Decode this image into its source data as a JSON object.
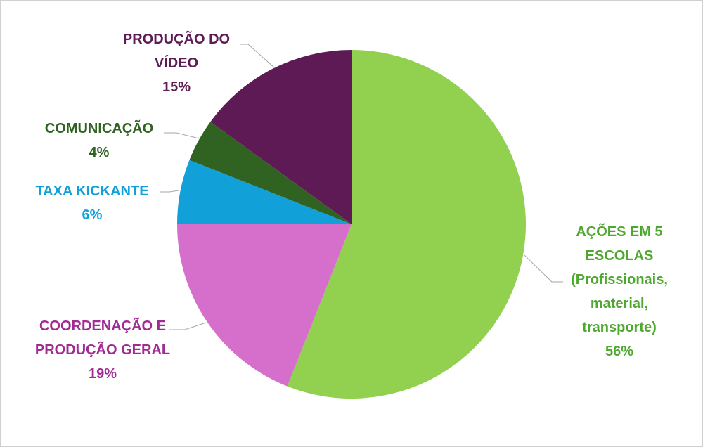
{
  "chart_data": {
    "type": "pie",
    "categories": [
      "AÇÕES EM 5 ESCOLAS (Profissionais, material, transporte)",
      "COORDENAÇÃO E PRODUÇÃO GERAL",
      "TAXA KICKANTE",
      "COMUNICAÇÃO",
      "PRODUÇÃO DO VÍDEO"
    ],
    "values": [
      56,
      19,
      6,
      4,
      15
    ],
    "value_labels": [
      "56%",
      "19%",
      "6%",
      "4%",
      "15%"
    ],
    "colors": [
      "#92d050",
      "#d66fcc",
      "#12a0d8",
      "#306322",
      "#5e1a55"
    ],
    "label_colors": [
      "#4ea72e",
      "#a02b93",
      "#12a0d8",
      "#306322",
      "#5e1a55"
    ]
  }
}
